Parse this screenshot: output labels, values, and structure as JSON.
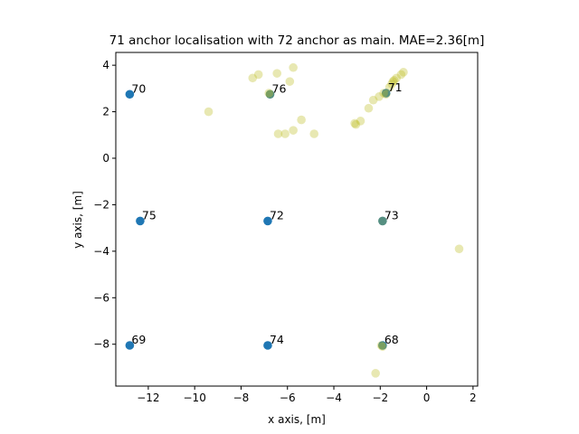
{
  "chart_data": {
    "type": "scatter",
    "title": "71 anchor localisation with 72 anchor as main. MAE=2.36[m]",
    "xlabel": "x axis, [m]",
    "ylabel": "y axis, [m]",
    "xlim": [
      -13.4,
      2.2
    ],
    "ylim": [
      -9.8,
      4.55
    ],
    "xticks": [
      -12,
      -10,
      -8,
      -6,
      -4,
      -2,
      0,
      2
    ],
    "yticks": [
      -8,
      -6,
      -4,
      -2,
      0,
      2,
      4
    ],
    "grid": false,
    "colors": {
      "anchor": "#1f77b4",
      "estimate": "#bcbd22",
      "frame": "#000000"
    },
    "series": [
      {
        "role": "anchors",
        "points": [
          {
            "label": "70",
            "x": -12.8,
            "y": 2.75
          },
          {
            "label": "71",
            "x": -1.75,
            "y": 2.8
          },
          {
            "label": "72",
            "x": -6.85,
            "y": -2.7
          },
          {
            "label": "73",
            "x": -1.9,
            "y": -2.7
          },
          {
            "label": "74",
            "x": -6.85,
            "y": -8.05
          },
          {
            "label": "75",
            "x": -12.35,
            "y": -2.7
          },
          {
            "label": "76",
            "x": -6.75,
            "y": 2.75
          },
          {
            "label": "68",
            "x": -1.9,
            "y": -8.05
          },
          {
            "label": "69",
            "x": -12.8,
            "y": -8.05
          }
        ]
      },
      {
        "role": "estimates",
        "points": [
          {
            "x": -9.4,
            "y": 2.0
          },
          {
            "x": -7.5,
            "y": 3.45
          },
          {
            "x": -7.25,
            "y": 3.6
          },
          {
            "x": -6.45,
            "y": 3.65
          },
          {
            "x": -5.75,
            "y": 3.9
          },
          {
            "x": -5.9,
            "y": 3.3
          },
          {
            "x": -6.75,
            "y": 2.75
          },
          {
            "x": -6.8,
            "y": 2.8
          },
          {
            "x": -5.4,
            "y": 1.65
          },
          {
            "x": -5.75,
            "y": 1.2
          },
          {
            "x": -6.4,
            "y": 1.05
          },
          {
            "x": -6.1,
            "y": 1.05
          },
          {
            "x": -4.85,
            "y": 1.05
          },
          {
            "x": -3.1,
            "y": 1.5
          },
          {
            "x": -3.05,
            "y": 1.45
          },
          {
            "x": -2.85,
            "y": 1.6
          },
          {
            "x": -2.5,
            "y": 2.15
          },
          {
            "x": -2.3,
            "y": 2.5
          },
          {
            "x": -2.05,
            "y": 2.65
          },
          {
            "x": -1.85,
            "y": 2.8
          },
          {
            "x": -1.75,
            "y": 2.75
          },
          {
            "x": -1.6,
            "y": 3.05
          },
          {
            "x": -1.5,
            "y": 3.2
          },
          {
            "x": -1.45,
            "y": 3.3
          },
          {
            "x": -1.4,
            "y": 3.35
          },
          {
            "x": -1.3,
            "y": 3.45
          },
          {
            "x": -1.1,
            "y": 3.6
          },
          {
            "x": -1.0,
            "y": 3.7
          },
          {
            "x": -1.9,
            "y": -2.7
          },
          {
            "x": -1.95,
            "y": -8.05
          },
          {
            "x": -1.9,
            "y": -8.1
          },
          {
            "x": -2.2,
            "y": -9.25
          },
          {
            "x": 1.4,
            "y": -3.9
          }
        ]
      }
    ]
  }
}
